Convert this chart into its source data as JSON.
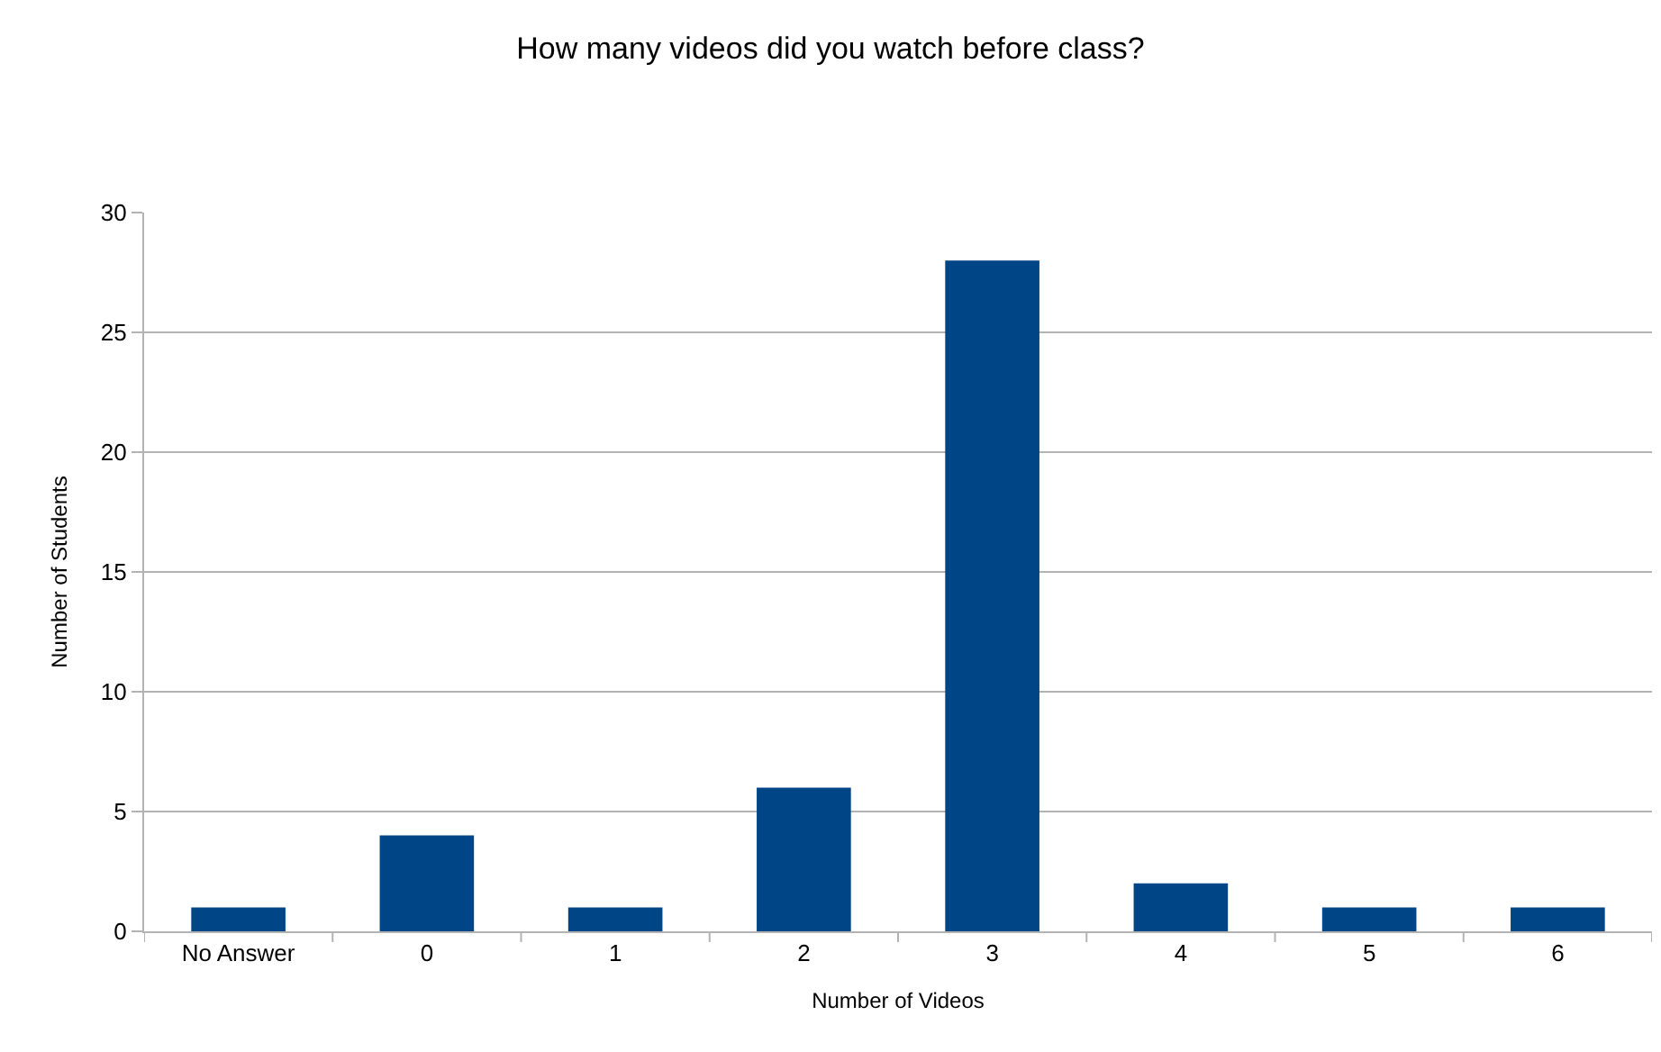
{
  "chart_data": {
    "type": "bar",
    "title": "How many videos did you watch before class?",
    "xlabel": "Number of Videos",
    "ylabel": "Number of Students",
    "categories": [
      "No Answer",
      "0",
      "1",
      "2",
      "3",
      "4",
      "5",
      "6"
    ],
    "values": [
      1,
      4,
      1,
      6,
      28,
      2,
      1,
      1
    ],
    "color": "#004586",
    "ylim": [
      0,
      30
    ],
    "yticks": [
      0,
      5,
      10,
      15,
      20,
      25,
      30
    ],
    "grid": "y",
    "legend": false
  }
}
